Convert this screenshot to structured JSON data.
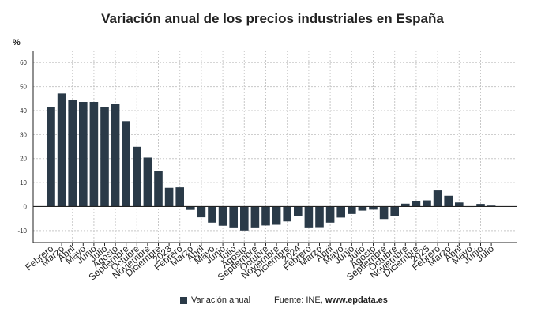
{
  "chart_data": {
    "type": "bar",
    "title": "Variación anual de los precios industriales en España",
    "ylabel": "%",
    "xlabel": "",
    "ylim": [
      -15,
      65
    ],
    "yticks": [
      -10,
      0,
      10,
      20,
      30,
      40,
      50,
      60
    ],
    "grid": true,
    "legend_position": "bottom",
    "categories": [
      "Febrero",
      "Marzo",
      "Abril",
      "Mayo",
      "Junio",
      "Julio",
      "Agosto",
      "Septiembre",
      "Octubre",
      "Noviembre",
      "Diciembre",
      "2023",
      "Febrero",
      "Marzo",
      "Abril",
      "Mayo",
      "Junio",
      "Julio",
      "Agosto",
      "Septiembre",
      "Octubre",
      "Noviembre",
      "Diciembre",
      "2024",
      "Febrero",
      "Marzo",
      "Abril",
      "Mayo",
      "Junio",
      "Julio",
      "Agosto",
      "Septiembre",
      "Octubre",
      "Noviembre",
      "Diciembre",
      "2025",
      "Febrero",
      "Marzo",
      "Abril",
      "Mayo",
      "Junio",
      "Julio"
    ],
    "series": [
      {
        "name": "Variación anual",
        "color": "#2a3a48",
        "values": [
          41.4,
          47.1,
          44.5,
          43.6,
          43.6,
          41.5,
          42.9,
          35.6,
          24.9,
          20.4,
          14.7,
          7.8,
          8.0,
          -1.4,
          -4.5,
          -6.7,
          -8.0,
          -8.7,
          -10.0,
          -8.7,
          -7.9,
          -7.6,
          -6.2,
          -3.9,
          -8.7,
          -8.6,
          -6.7,
          -4.6,
          -3.1,
          -1.7,
          -1.3,
          -5.2,
          -3.9,
          1.2,
          2.3,
          2.6,
          6.7,
          4.5,
          1.7,
          -0.1,
          1.1,
          0.4
        ]
      }
    ]
  },
  "legend": {
    "label": "Variación anual"
  },
  "source": {
    "prefix": "Fuente: INE, ",
    "site": "www.epdata.es"
  }
}
